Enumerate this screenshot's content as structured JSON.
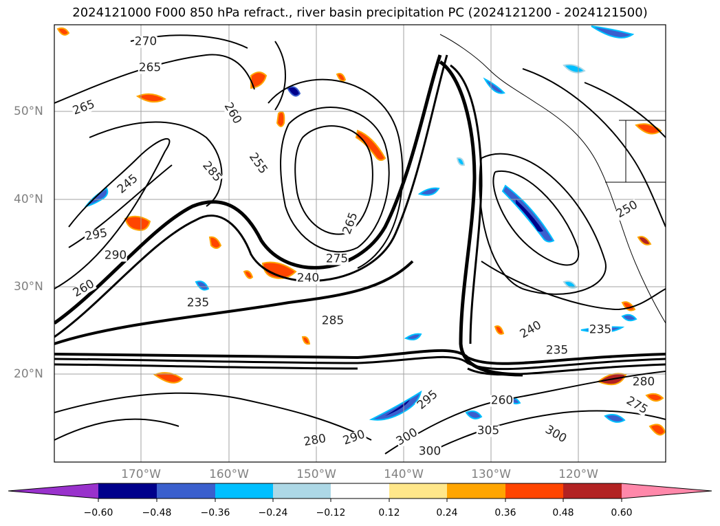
{
  "title": "2024121000 F000 850 hPa refract., river basin precipitation PC (2024121200 - 2024121500)",
  "map": {
    "lat_labels": [
      "50°N",
      "40°N",
      "30°N",
      "20°N"
    ],
    "lon_labels": [
      "170°W",
      "160°W",
      "150°W",
      "140°W",
      "130°W",
      "120°W"
    ],
    "contour_labels": [
      {
        "text": "270"
      },
      {
        "text": "265"
      },
      {
        "text": "265"
      },
      {
        "text": "260"
      },
      {
        "text": "255"
      },
      {
        "text": "285"
      },
      {
        "text": "245"
      },
      {
        "text": "295"
      },
      {
        "text": "290"
      },
      {
        "text": "260"
      },
      {
        "text": "235"
      },
      {
        "text": "240"
      },
      {
        "text": "285"
      },
      {
        "text": "275"
      },
      {
        "text": "265"
      },
      {
        "text": "240"
      },
      {
        "text": "235"
      },
      {
        "text": "235"
      },
      {
        "text": "295"
      },
      {
        "text": "300"
      },
      {
        "text": "300"
      },
      {
        "text": "305"
      },
      {
        "text": "300"
      },
      {
        "text": "280"
      },
      {
        "text": "275"
      },
      {
        "text": "290"
      },
      {
        "text": "280"
      },
      {
        "text": "260"
      },
      {
        "text": "250"
      }
    ]
  },
  "colorbar": {
    "ticks": [
      "−0.60",
      "−0.48",
      "−0.36",
      "−0.24",
      "−0.12",
      "0.12",
      "0.24",
      "0.36",
      "0.48",
      "0.60"
    ],
    "colors": [
      "#9932cc",
      "#00008b",
      "#3a5fcd",
      "#00bfff",
      "#add8e6",
      "#ffffff",
      "#ffe78a",
      "#ffa500",
      "#ff4500",
      "#b22222",
      "#ff88aa"
    ]
  }
}
